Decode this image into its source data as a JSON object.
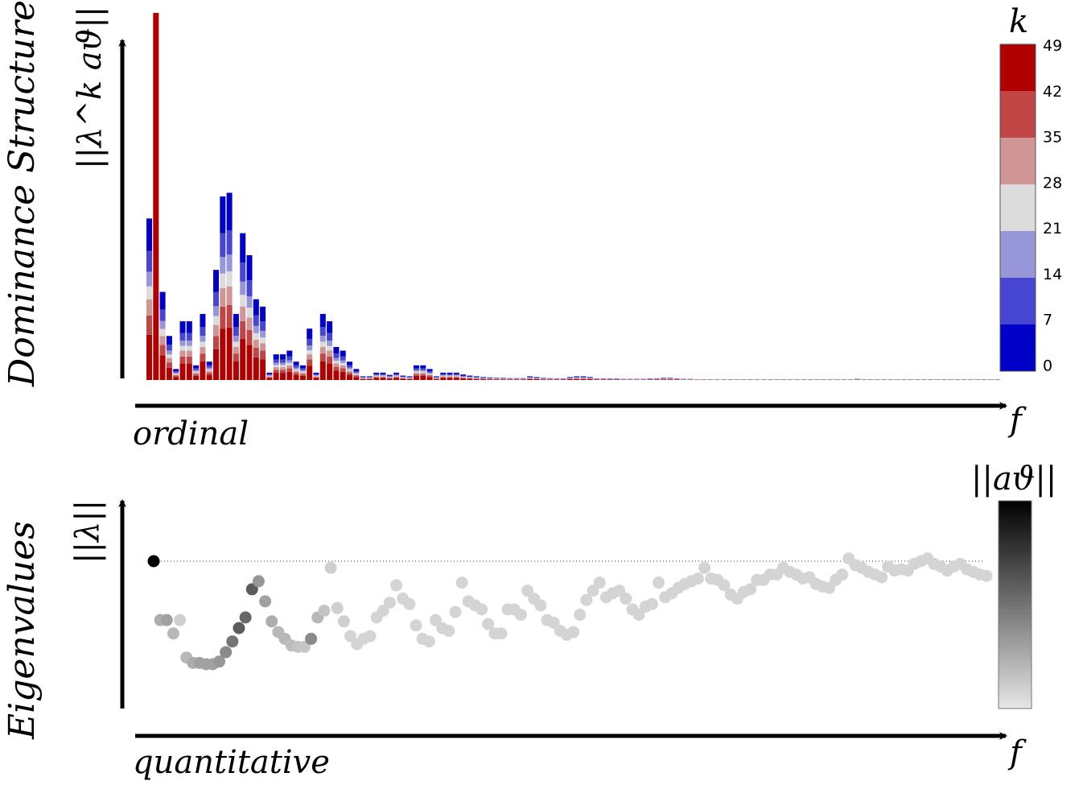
{
  "top_panel": {
    "ylabel": "Dominance Structure",
    "ymetric": "||λ^k aϑ||",
    "xlabel": "ordinal",
    "xvar": "f",
    "colorbar_title": "k",
    "colorbar_ticks": [
      "49",
      "42",
      "35",
      "28",
      "21",
      "14",
      "7",
      "0"
    ]
  },
  "bottom_panel": {
    "ylabel": "Eigenvalues",
    "ymetric": "||λ||",
    "xlabel": "quantitative",
    "xvar": "f",
    "colorbar_title": "||aϑ||"
  },
  "colors": {
    "k_bands": [
      "#0000c8",
      "#4646d2",
      "#9696d8",
      "#dcdcdc",
      "#d09696",
      "#c04646",
      "#b00000"
    ],
    "gray_min": "#e6e6e6",
    "gray_max": "#000000"
  },
  "chart_data": [
    {
      "type": "bar",
      "stacked_by": "k",
      "k_range": [
        0,
        49
      ],
      "k_bands": [
        [
          0,
          7
        ],
        [
          7,
          14
        ],
        [
          14,
          21
        ],
        [
          21,
          28
        ],
        [
          28,
          35
        ],
        [
          35,
          42
        ],
        [
          42,
          49
        ]
      ],
      "x": [
        1,
        2,
        3,
        4,
        5,
        6,
        7,
        8,
        9,
        10,
        11,
        12,
        13,
        14,
        15,
        16,
        17,
        18,
        19,
        20,
        21,
        22,
        23,
        24,
        25,
        26,
        27,
        28,
        29,
        30,
        31,
        32,
        33,
        34,
        35,
        36,
        37,
        38,
        39,
        40,
        41,
        42,
        43,
        44,
        45,
        46,
        47,
        48,
        49,
        50,
        51,
        52,
        53,
        54,
        55,
        56,
        57,
        58,
        59,
        60,
        61,
        62,
        63,
        64,
        65,
        66,
        67,
        68,
        69,
        70,
        71,
        72,
        73,
        74,
        75,
        76,
        77,
        78,
        79,
        80,
        81,
        82,
        83,
        84,
        85,
        86,
        87,
        88,
        89,
        90,
        91,
        92,
        93,
        94,
        95,
        96,
        97,
        98,
        99,
        100,
        101,
        102,
        103,
        104,
        105,
        106,
        107,
        108,
        109,
        110,
        111,
        112,
        113,
        114,
        115,
        116,
        117,
        118,
        119,
        120,
        121,
        122,
        123,
        124,
        125,
        126,
        127,
        128
      ],
      "values": [
        0.44,
        1.0,
        0.24,
        0.12,
        0.03,
        0.16,
        0.16,
        0.04,
        0.18,
        0.05,
        0.3,
        0.5,
        0.51,
        0.18,
        0.4,
        0.34,
        0.22,
        0.2,
        0.02,
        0.07,
        0.07,
        0.08,
        0.05,
        0.04,
        0.14,
        0.02,
        0.18,
        0.16,
        0.09,
        0.08,
        0.05,
        0.03,
        0.01,
        0.01,
        0.02,
        0.02,
        0.014,
        0.02,
        0.012,
        0.01,
        0.04,
        0.04,
        0.03,
        0.01,
        0.02,
        0.02,
        0.02,
        0.015,
        0.012,
        0.01,
        0.008,
        0.007,
        0.006,
        0.006,
        0.005,
        0.005,
        0.005,
        0.01,
        0.008,
        0.006,
        0.005,
        0.004,
        0.004,
        0.008,
        0.01,
        0.01,
        0.008,
        0.004,
        0.004,
        0.004,
        0.004,
        0.003,
        0.003,
        0.003,
        0.003,
        0.004,
        0.004,
        0.006,
        0.006,
        0.004,
        0.003,
        0.003,
        0.002,
        0.002,
        0.002,
        0.002,
        0.002,
        0.002,
        0.002,
        0.002,
        0.002,
        0.002,
        0.002,
        0.002,
        0.002,
        0.002,
        0.002,
        0.002,
        0.002,
        0.002,
        0.002,
        0.002,
        0.002,
        0.002,
        0.002,
        0.002,
        0.003,
        0.002,
        0.002,
        0.002,
        0.002,
        0.002,
        0.002,
        0.002,
        0.002,
        0.002,
        0.002,
        0.002,
        0.002,
        0.002,
        0.002,
        0.002,
        0.002,
        0.002,
        0.002,
        0.002,
        0.002,
        0.002
      ]
    },
    {
      "type": "scatter",
      "reference_line": 1.0,
      "x": [
        1,
        2,
        3,
        4,
        5,
        6,
        7,
        8,
        9,
        10,
        11,
        12,
        13,
        14,
        15,
        16,
        17,
        18,
        19,
        20,
        21,
        22,
        23,
        24,
        25,
        26,
        27,
        28,
        29,
        30,
        31,
        32,
        33,
        34,
        35,
        36,
        37,
        38,
        39,
        40,
        41,
        42,
        43,
        44,
        45,
        46,
        47,
        48,
        49,
        50,
        51,
        52,
        53,
        54,
        55,
        56,
        57,
        58,
        59,
        60,
        61,
        62,
        63,
        64,
        65,
        66,
        67,
        68,
        69,
        70,
        71,
        72,
        73,
        74,
        75,
        76,
        77,
        78,
        79,
        80,
        81,
        82,
        83,
        84,
        85,
        86,
        87,
        88,
        89,
        90,
        91,
        92,
        93,
        94,
        95,
        96,
        97,
        98,
        99,
        100,
        101,
        102,
        103,
        104,
        105,
        106,
        107,
        108,
        109,
        110,
        111,
        112,
        113,
        114,
        115,
        116,
        117,
        118,
        119,
        120,
        121,
        122,
        123,
        124,
        125,
        126,
        127,
        128
      ],
      "y": [
        1.0,
        0.56,
        0.56,
        0.46,
        0.56,
        0.28,
        0.24,
        0.24,
        0.23,
        0.23,
        0.25,
        0.32,
        0.4,
        0.5,
        0.58,
        0.79,
        0.85,
        0.7,
        0.55,
        0.47,
        0.42,
        0.37,
        0.36,
        0.36,
        0.42,
        0.58,
        0.63,
        0.95,
        0.65,
        0.55,
        0.44,
        0.38,
        0.42,
        0.44,
        0.58,
        0.63,
        0.69,
        0.82,
        0.72,
        0.68,
        0.52,
        0.42,
        0.4,
        0.56,
        0.5,
        0.48,
        0.62,
        0.84,
        0.7,
        0.67,
        0.64,
        0.53,
        0.46,
        0.46,
        0.64,
        0.64,
        0.6,
        0.78,
        0.72,
        0.67,
        0.56,
        0.54,
        0.48,
        0.45,
        0.47,
        0.6,
        0.71,
        0.78,
        0.84,
        0.73,
        0.76,
        0.78,
        0.72,
        0.64,
        0.6,
        0.66,
        0.68,
        0.84,
        0.73,
        0.76,
        0.8,
        0.83,
        0.85,
        0.87,
        0.95,
        0.87,
        0.86,
        0.82,
        0.75,
        0.72,
        0.77,
        0.79,
        0.86,
        0.86,
        0.9,
        0.9,
        0.95,
        0.92,
        0.9,
        0.87,
        0.88,
        0.83,
        0.81,
        0.8,
        0.86,
        0.9,
        1.02,
        0.97,
        0.95,
        0.92,
        0.9,
        0.88,
        0.96,
        0.93,
        0.94,
        0.93,
        0.98,
        1.0,
        1.02,
        0.98,
        0.96,
        0.93,
        0.96,
        0.98,
        0.94,
        0.92,
        0.9,
        0.89
      ],
      "color_value": [
        1.0,
        0.25,
        0.3,
        0.2,
        0.1,
        0.2,
        0.25,
        0.3,
        0.3,
        0.3,
        0.35,
        0.4,
        0.5,
        0.6,
        0.55,
        0.6,
        0.35,
        0.3,
        0.25,
        0.2,
        0.2,
        0.18,
        0.15,
        0.14,
        0.4,
        0.2,
        0.15,
        0.1,
        0.1,
        0.1,
        0.08,
        0.08,
        0.08,
        0.08,
        0.08,
        0.08,
        0.08,
        0.08,
        0.08,
        0.08,
        0.08,
        0.08,
        0.08,
        0.08,
        0.08,
        0.08,
        0.08,
        0.08,
        0.08,
        0.08,
        0.08,
        0.08,
        0.08,
        0.08,
        0.08,
        0.08,
        0.08,
        0.08,
        0.08,
        0.08,
        0.08,
        0.08,
        0.08,
        0.08,
        0.08,
        0.08,
        0.08,
        0.08,
        0.08,
        0.08,
        0.08,
        0.08,
        0.08,
        0.08,
        0.08,
        0.08,
        0.08,
        0.08,
        0.08,
        0.08,
        0.08,
        0.08,
        0.08,
        0.08,
        0.08,
        0.08,
        0.08,
        0.08,
        0.08,
        0.08,
        0.08,
        0.08,
        0.08,
        0.08,
        0.08,
        0.08,
        0.08,
        0.08,
        0.08,
        0.08,
        0.08,
        0.08,
        0.08,
        0.08,
        0.08,
        0.08,
        0.08,
        0.08,
        0.08,
        0.08,
        0.08,
        0.08,
        0.08,
        0.08,
        0.08,
        0.08,
        0.08,
        0.08,
        0.08,
        0.08,
        0.08,
        0.08,
        0.08,
        0.08,
        0.08,
        0.08,
        0.08,
        0.08
      ]
    }
  ]
}
